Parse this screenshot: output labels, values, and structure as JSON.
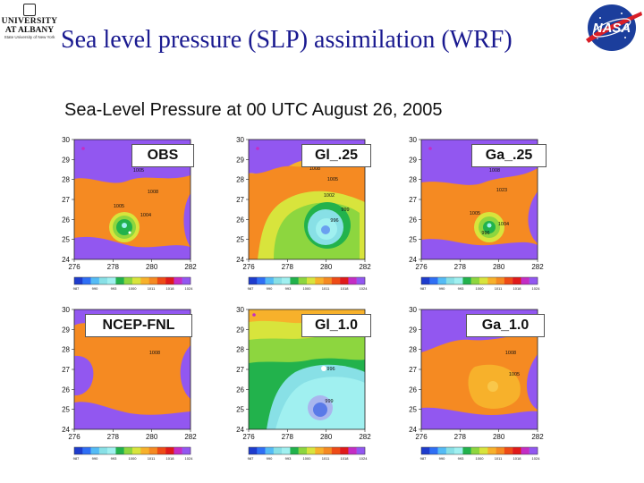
{
  "slide": {
    "title": "Sea level pressure (SLP) assimilation (WRF)",
    "subtitle": "Sea-Level Pressure at 00 UTC August 26, 2005"
  },
  "logos": {
    "university": {
      "line1": "UNIVERSITY",
      "line2": "AT ALBANY",
      "line3": "State University of New York"
    },
    "nasa": {
      "text": "NASA"
    }
  },
  "maps": {
    "y_ticks": [
      "30",
      "29",
      "28",
      "27",
      "26",
      "25",
      "24"
    ],
    "x_ticks": [
      "276",
      "278",
      "280",
      "282"
    ],
    "colorbar_ticks": [
      "987",
      "990",
      "993",
      "996",
      "999",
      "1002",
      "1005",
      "1008",
      "1011",
      "1014",
      "1017",
      "1020",
      "1023"
    ],
    "colorbar_ticks_shown": [
      "987",
      "990",
      "993",
      "1000",
      "1011",
      "1018",
      "1024"
    ],
    "colorbar_colors": [
      "#1e3ccd",
      "#2f6ff5",
      "#54bbf5",
      "#88e0e6",
      "#a0f0f0",
      "#22b24c",
      "#8dd63f",
      "#d8e43c",
      "#f7b12b",
      "#f58a22",
      "#ee4b16",
      "#e01a1a",
      "#c42dc4",
      "#9257f0"
    ],
    "panels": [
      {
        "label": "OBS",
        "contours": [
          "1005",
          "1008",
          "1005",
          "1004"
        ]
      },
      {
        "label": "Gl_.25",
        "contours": [
          "1008",
          "1005",
          "1002",
          "999",
          "996"
        ]
      },
      {
        "label": "Ga_.25",
        "contours": [
          "1008",
          "1023",
          "1005",
          "1004",
          "996"
        ]
      },
      {
        "label": "NCEP-FNL",
        "contours": [
          "1008"
        ]
      },
      {
        "label": "Gl_1.0",
        "contours": [
          "996",
          "999"
        ]
      },
      {
        "label": "Ga_1.0",
        "contours": [
          "1008",
          "1005"
        ]
      }
    ]
  }
}
